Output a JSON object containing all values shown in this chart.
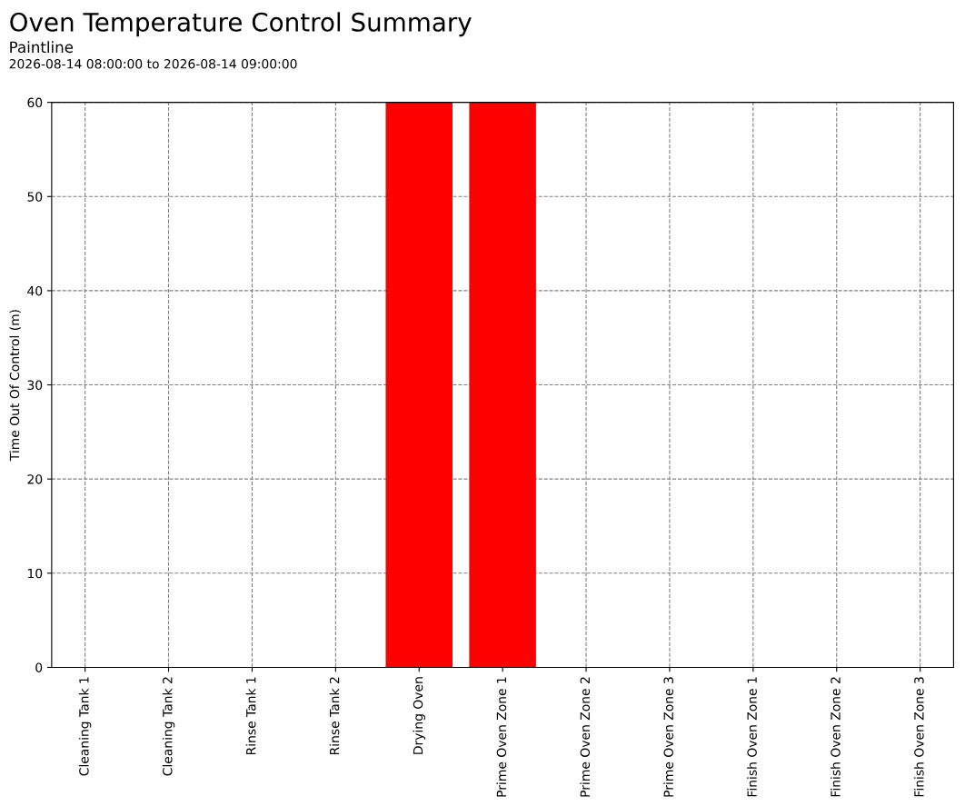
{
  "chart_data": {
    "type": "bar",
    "title": "Oven Temperature Control Summary",
    "subtitle": "Paintline",
    "annotations": [
      "2026-08-14 08:00:00 to 2026-08-14 09:00:00"
    ],
    "ylabel": "Time Out Of Control (m)",
    "categories": [
      "Cleaning Tank 1",
      "Cleaning Tank 2",
      "Rinse Tank 1",
      "Rinse Tank 2",
      "Drying Oven",
      "Prime Oven Zone 1",
      "Prime Oven Zone 2",
      "Prime Oven Zone 3",
      "Finish Oven Zone 1",
      "Finish Oven Zone 2",
      "Finish Oven Zone 3"
    ],
    "values": [
      0,
      0,
      0,
      0,
      60,
      60,
      0,
      0,
      0,
      0,
      0
    ],
    "color": "#ff0000",
    "ylim": [
      0,
      60
    ],
    "yticks": [
      0,
      10,
      20,
      30,
      40,
      50,
      60
    ],
    "grid": true
  }
}
